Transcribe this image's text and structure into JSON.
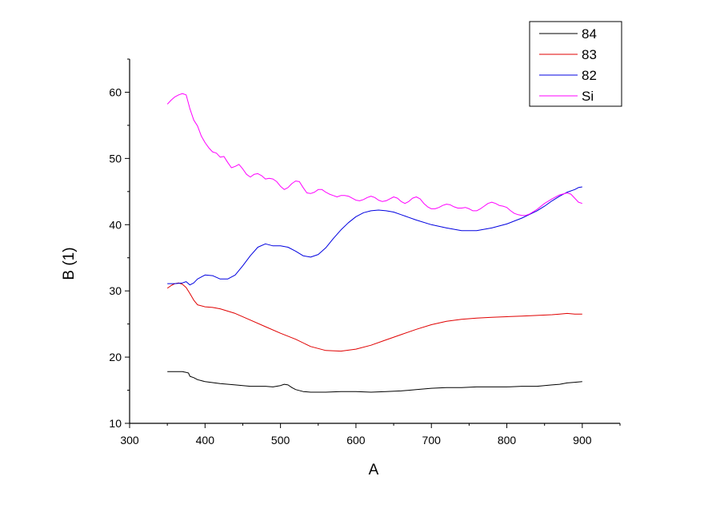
{
  "chart_data": {
    "type": "line",
    "title": "",
    "xlabel": "A",
    "ylabel": "B (1)",
    "xlim": [
      300,
      950
    ],
    "ylim": [
      10,
      65
    ],
    "xticks": [
      300,
      400,
      500,
      600,
      700,
      800,
      900
    ],
    "yticks": [
      10,
      20,
      30,
      40,
      50,
      60
    ],
    "grid": false,
    "legend_position": "top-right",
    "series": [
      {
        "name": "84",
        "color": "#000000",
        "points": [
          [
            350,
            17.8
          ],
          [
            360,
            17.8
          ],
          [
            370,
            17.8
          ],
          [
            375,
            17.7
          ],
          [
            378,
            17.6
          ],
          [
            380,
            17.1
          ],
          [
            385,
            16.9
          ],
          [
            390,
            16.6
          ],
          [
            400,
            16.3
          ],
          [
            420,
            16.0
          ],
          [
            440,
            15.8
          ],
          [
            460,
            15.6
          ],
          [
            480,
            15.6
          ],
          [
            490,
            15.5
          ],
          [
            500,
            15.7
          ],
          [
            505,
            15.9
          ],
          [
            510,
            15.8
          ],
          [
            515,
            15.4
          ],
          [
            520,
            15.1
          ],
          [
            530,
            14.8
          ],
          [
            540,
            14.7
          ],
          [
            560,
            14.7
          ],
          [
            580,
            14.8
          ],
          [
            600,
            14.8
          ],
          [
            620,
            14.7
          ],
          [
            640,
            14.8
          ],
          [
            660,
            14.9
          ],
          [
            680,
            15.1
          ],
          [
            700,
            15.3
          ],
          [
            720,
            15.4
          ],
          [
            740,
            15.4
          ],
          [
            760,
            15.5
          ],
          [
            780,
            15.5
          ],
          [
            800,
            15.5
          ],
          [
            820,
            15.6
          ],
          [
            840,
            15.6
          ],
          [
            860,
            15.8
          ],
          [
            870,
            15.9
          ],
          [
            880,
            16.1
          ],
          [
            890,
            16.2
          ],
          [
            900,
            16.3
          ]
        ]
      },
      {
        "name": "83",
        "color": "#e00000",
        "points": [
          [
            350,
            30.4
          ],
          [
            355,
            30.8
          ],
          [
            360,
            31.1
          ],
          [
            365,
            31.2
          ],
          [
            370,
            31.0
          ],
          [
            375,
            30.5
          ],
          [
            380,
            29.6
          ],
          [
            385,
            28.6
          ],
          [
            390,
            27.9
          ],
          [
            400,
            27.6
          ],
          [
            410,
            27.5
          ],
          [
            420,
            27.3
          ],
          [
            440,
            26.6
          ],
          [
            460,
            25.6
          ],
          [
            480,
            24.6
          ],
          [
            500,
            23.6
          ],
          [
            520,
            22.7
          ],
          [
            540,
            21.6
          ],
          [
            560,
            21.0
          ],
          [
            580,
            20.9
          ],
          [
            600,
            21.2
          ],
          [
            620,
            21.8
          ],
          [
            640,
            22.6
          ],
          [
            660,
            23.4
          ],
          [
            680,
            24.2
          ],
          [
            700,
            24.9
          ],
          [
            720,
            25.4
          ],
          [
            740,
            25.7
          ],
          [
            760,
            25.9
          ],
          [
            780,
            26.0
          ],
          [
            800,
            26.1
          ],
          [
            820,
            26.2
          ],
          [
            840,
            26.3
          ],
          [
            860,
            26.4
          ],
          [
            870,
            26.5
          ],
          [
            880,
            26.6
          ],
          [
            890,
            26.5
          ],
          [
            900,
            26.5
          ]
        ]
      },
      {
        "name": "82",
        "color": "#0000e0",
        "points": [
          [
            350,
            31.1
          ],
          [
            360,
            31.1
          ],
          [
            370,
            31.2
          ],
          [
            375,
            31.4
          ],
          [
            380,
            30.9
          ],
          [
            385,
            31.2
          ],
          [
            390,
            31.8
          ],
          [
            400,
            32.4
          ],
          [
            410,
            32.3
          ],
          [
            420,
            31.8
          ],
          [
            430,
            31.8
          ],
          [
            440,
            32.4
          ],
          [
            450,
            33.8
          ],
          [
            460,
            35.3
          ],
          [
            470,
            36.6
          ],
          [
            480,
            37.1
          ],
          [
            490,
            36.8
          ],
          [
            500,
            36.8
          ],
          [
            510,
            36.6
          ],
          [
            520,
            36.0
          ],
          [
            530,
            35.3
          ],
          [
            540,
            35.1
          ],
          [
            550,
            35.5
          ],
          [
            560,
            36.5
          ],
          [
            570,
            37.9
          ],
          [
            580,
            39.2
          ],
          [
            590,
            40.3
          ],
          [
            600,
            41.2
          ],
          [
            610,
            41.8
          ],
          [
            620,
            42.1
          ],
          [
            630,
            42.2
          ],
          [
            640,
            42.1
          ],
          [
            650,
            41.9
          ],
          [
            660,
            41.5
          ],
          [
            680,
            40.7
          ],
          [
            700,
            40.0
          ],
          [
            720,
            39.5
          ],
          [
            740,
            39.1
          ],
          [
            760,
            39.1
          ],
          [
            780,
            39.5
          ],
          [
            800,
            40.1
          ],
          [
            820,
            41.0
          ],
          [
            840,
            42.1
          ],
          [
            850,
            42.8
          ],
          [
            860,
            43.6
          ],
          [
            870,
            44.3
          ],
          [
            880,
            44.9
          ],
          [
            890,
            45.3
          ],
          [
            895,
            45.6
          ],
          [
            900,
            45.7
          ]
        ]
      },
      {
        "name": "Si",
        "color": "#ff00ff",
        "points": [
          [
            350,
            58.2
          ],
          [
            355,
            58.8
          ],
          [
            360,
            59.3
          ],
          [
            365,
            59.6
          ],
          [
            370,
            59.8
          ],
          [
            375,
            59.6
          ],
          [
            380,
            57.5
          ],
          [
            385,
            55.8
          ],
          [
            390,
            54.9
          ],
          [
            395,
            53.4
          ],
          [
            400,
            52.4
          ],
          [
            405,
            51.6
          ],
          [
            410,
            51.0
          ],
          [
            415,
            50.8
          ],
          [
            420,
            50.2
          ],
          [
            425,
            50.3
          ],
          [
            430,
            49.4
          ],
          [
            435,
            48.6
          ],
          [
            440,
            48.8
          ],
          [
            445,
            49.1
          ],
          [
            450,
            48.4
          ],
          [
            455,
            47.6
          ],
          [
            460,
            47.2
          ],
          [
            465,
            47.6
          ],
          [
            470,
            47.7
          ],
          [
            475,
            47.4
          ],
          [
            480,
            46.9
          ],
          [
            485,
            47.0
          ],
          [
            490,
            46.9
          ],
          [
            495,
            46.5
          ],
          [
            500,
            45.8
          ],
          [
            505,
            45.3
          ],
          [
            510,
            45.6
          ],
          [
            515,
            46.2
          ],
          [
            520,
            46.6
          ],
          [
            525,
            46.5
          ],
          [
            530,
            45.6
          ],
          [
            535,
            44.8
          ],
          [
            540,
            44.7
          ],
          [
            545,
            44.9
          ],
          [
            550,
            45.3
          ],
          [
            555,
            45.3
          ],
          [
            560,
            44.9
          ],
          [
            565,
            44.6
          ],
          [
            570,
            44.4
          ],
          [
            575,
            44.2
          ],
          [
            580,
            44.4
          ],
          [
            585,
            44.4
          ],
          [
            590,
            44.3
          ],
          [
            595,
            44.0
          ],
          [
            600,
            43.7
          ],
          [
            605,
            43.6
          ],
          [
            610,
            43.8
          ],
          [
            615,
            44.1
          ],
          [
            620,
            44.3
          ],
          [
            625,
            44.1
          ],
          [
            630,
            43.7
          ],
          [
            635,
            43.5
          ],
          [
            640,
            43.6
          ],
          [
            645,
            43.9
          ],
          [
            650,
            44.2
          ],
          [
            655,
            44.0
          ],
          [
            660,
            43.5
          ],
          [
            665,
            43.2
          ],
          [
            670,
            43.5
          ],
          [
            675,
            44.0
          ],
          [
            680,
            44.2
          ],
          [
            685,
            43.9
          ],
          [
            690,
            43.2
          ],
          [
            695,
            42.7
          ],
          [
            700,
            42.4
          ],
          [
            705,
            42.4
          ],
          [
            710,
            42.6
          ],
          [
            715,
            42.9
          ],
          [
            720,
            43.1
          ],
          [
            725,
            43.0
          ],
          [
            730,
            42.7
          ],
          [
            735,
            42.5
          ],
          [
            740,
            42.5
          ],
          [
            745,
            42.6
          ],
          [
            750,
            42.4
          ],
          [
            755,
            42.1
          ],
          [
            760,
            42.1
          ],
          [
            765,
            42.4
          ],
          [
            770,
            42.8
          ],
          [
            775,
            43.2
          ],
          [
            780,
            43.4
          ],
          [
            785,
            43.2
          ],
          [
            790,
            42.9
          ],
          [
            795,
            42.8
          ],
          [
            800,
            42.6
          ],
          [
            805,
            42.1
          ],
          [
            810,
            41.7
          ],
          [
            815,
            41.5
          ],
          [
            820,
            41.4
          ],
          [
            825,
            41.4
          ],
          [
            830,
            41.6
          ],
          [
            840,
            42.3
          ],
          [
            850,
            43.2
          ],
          [
            860,
            43.9
          ],
          [
            870,
            44.5
          ],
          [
            880,
            44.8
          ],
          [
            885,
            44.6
          ],
          [
            890,
            44.0
          ],
          [
            895,
            43.4
          ],
          [
            900,
            43.2
          ]
        ]
      }
    ]
  }
}
